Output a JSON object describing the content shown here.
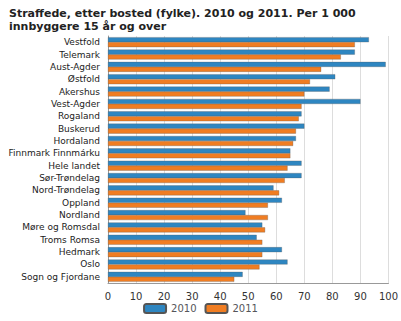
{
  "chart_data": {
    "type": "bar",
    "orientation": "horizontal",
    "title": "Straffede, etter bosted (fylke). 2010 og 2011. Per 1 000 innbyggere 15 år og over",
    "categories": [
      "Vestfold",
      "Telemark",
      "Aust-Agder",
      "Østfold",
      "Akershus",
      "Vest-Agder",
      "Rogaland",
      "Buskerud",
      "Hordaland",
      "Finnmark Finnmárku",
      "Hele landet",
      "Sør-Trøndelag",
      "Nord-Trøndelag",
      "Oppland",
      "Nordland",
      "Møre og Romsdal",
      "Troms Romsa",
      "Hedmark",
      "Oslo",
      "Sogn og Fjordane"
    ],
    "series": [
      {
        "name": "2010",
        "color": "#2e86c1",
        "values": [
          93,
          88,
          99,
          81,
          79,
          90,
          69,
          70,
          67,
          65,
          69,
          69,
          59,
          62,
          49,
          55,
          53,
          62,
          64,
          48
        ]
      },
      {
        "name": "2011",
        "color": "#f07d22",
        "values": [
          88,
          83,
          76,
          72,
          70,
          69,
          68,
          67,
          66,
          65,
          64,
          63,
          61,
          57,
          57,
          56,
          55,
          55,
          54,
          45
        ]
      }
    ],
    "xlim": [
      0,
      100
    ],
    "xticks": [
      0,
      10,
      20,
      30,
      40,
      50,
      60,
      70,
      80,
      90,
      100
    ],
    "grid": true,
    "legend": "bottom"
  }
}
